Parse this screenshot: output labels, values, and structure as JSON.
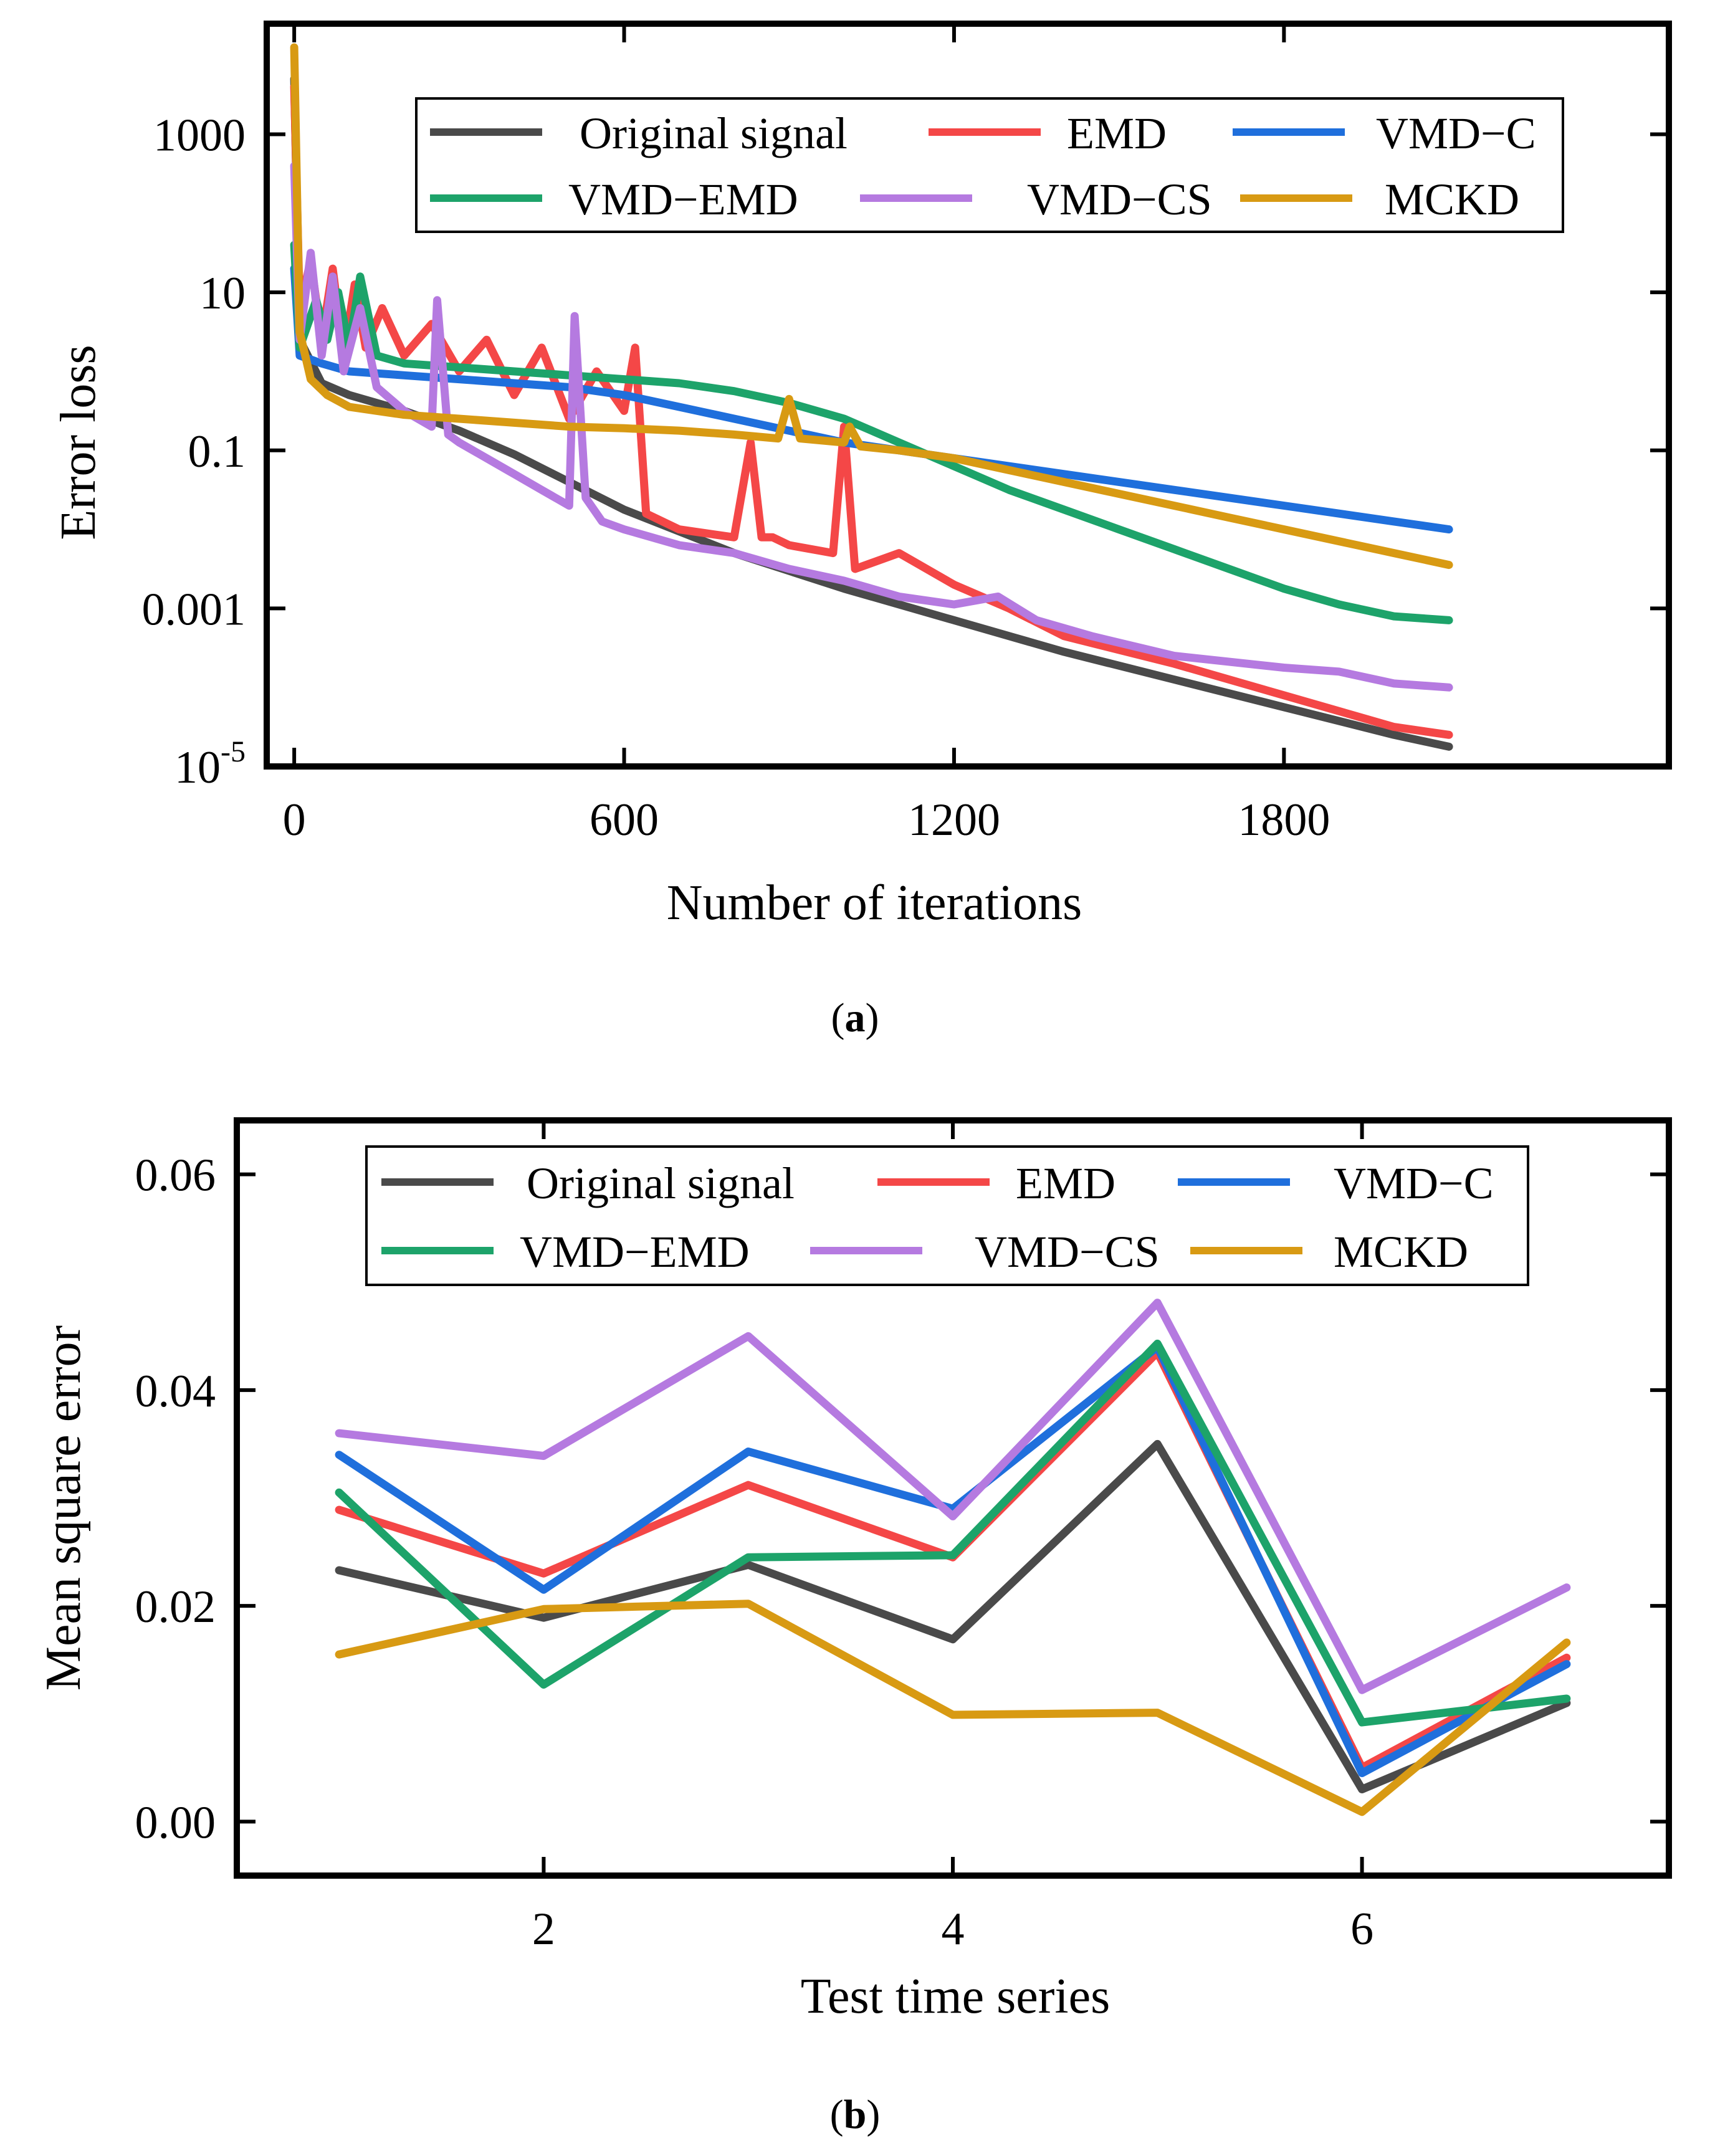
{
  "chart_data": [
    {
      "type": "line",
      "caption": {
        "open": "(",
        "letter": "a",
        "close": ")"
      },
      "xlabel": "Number of iterations",
      "ylabel": "Error loss",
      "yscale": "log",
      "xlim": [
        -50,
        2500
      ],
      "ylim_log10": [
        -5,
        4.4
      ],
      "x_ticks": [
        0,
        600,
        1200,
        1800
      ],
      "x_tick_labels": [
        "0",
        "600",
        "1200",
        "1800"
      ],
      "y_ticks_log10": [
        -5,
        -3,
        -1,
        1,
        3
      ],
      "y_tick_labels": [
        {
          "base": "10",
          "sup": "-5"
        },
        {
          "text": "0.001"
        },
        {
          "text": "0.1"
        },
        {
          "text": "10"
        },
        {
          "text": "1000"
        }
      ],
      "legend": {
        "location": "top-right",
        "columns": 3
      },
      "series": [
        {
          "name": "Original signal",
          "color": "#4a4a4a",
          "x": [
            0,
            10,
            50,
            100,
            200,
            300,
            400,
            500,
            600,
            800,
            1000,
            1200,
            1400,
            1600,
            1800,
            2000,
            2100
          ],
          "log10_y": [
            3.7,
            0.4,
            -0.15,
            -0.3,
            -0.5,
            -0.75,
            -1.05,
            -1.4,
            -1.75,
            -2.3,
            -2.75,
            -3.15,
            -3.55,
            -3.9,
            -4.25,
            -4.6,
            -4.75
          ]
        },
        {
          "name": "EMD",
          "color": "#f44747",
          "x": [
            0,
            10,
            30,
            50,
            70,
            90,
            110,
            130,
            160,
            200,
            250,
            300,
            350,
            400,
            450,
            500,
            550,
            600,
            620,
            640,
            700,
            800,
            830,
            850,
            870,
            900,
            980,
            1000,
            1020,
            1100,
            1200,
            1300,
            1400,
            1600,
            1800,
            2000,
            2100
          ],
          "log10_y": [
            3.6,
            0.8,
            1.4,
            0.4,
            1.3,
            0.2,
            1.1,
            0.3,
            0.8,
            0.2,
            0.6,
            0.0,
            0.4,
            -0.3,
            0.3,
            -0.6,
            0.0,
            -0.5,
            0.3,
            -1.8,
            -2.0,
            -2.1,
            -0.9,
            -2.1,
            -2.1,
            -2.2,
            -2.3,
            -0.7,
            -2.5,
            -2.3,
            -2.7,
            -3.0,
            -3.35,
            -3.7,
            -4.1,
            -4.5,
            -4.6
          ]
        },
        {
          "name": "VMD−C",
          "color": "#1f6fdc",
          "x": [
            0,
            10,
            50,
            100,
            200,
            300,
            400,
            500,
            600,
            700,
            800,
            900,
            1000,
            1100,
            1200,
            1400,
            1600,
            1800,
            2000,
            2100
          ],
          "log10_y": [
            1.3,
            0.2,
            0.1,
            0.0,
            -0.05,
            -0.1,
            -0.15,
            -0.2,
            -0.3,
            -0.45,
            -0.6,
            -0.75,
            -0.9,
            -1.0,
            -1.1,
            -1.3,
            -1.5,
            -1.7,
            -1.9,
            -2.0
          ]
        },
        {
          "name": "VMD−EMD",
          "color": "#1da36a",
          "x": [
            0,
            10,
            40,
            60,
            80,
            100,
            120,
            150,
            200,
            300,
            400,
            500,
            600,
            700,
            800,
            900,
            1000,
            1100,
            1200,
            1300,
            1400,
            1500,
            1600,
            1700,
            1800,
            1900,
            2000,
            2100
          ],
          "log10_y": [
            1.6,
            0.3,
            0.9,
            0.4,
            1.0,
            0.3,
            1.2,
            0.2,
            0.1,
            0.05,
            0.0,
            -0.05,
            -0.1,
            -0.15,
            -0.25,
            -0.4,
            -0.6,
            -0.9,
            -1.2,
            -1.5,
            -1.75,
            -2.0,
            -2.25,
            -2.5,
            -2.75,
            -2.95,
            -3.1,
            -3.15
          ]
        },
        {
          "name": "VMD−CS",
          "color": "#b57ae0",
          "x": [
            0,
            10,
            30,
            50,
            70,
            90,
            120,
            150,
            200,
            250,
            260,
            280,
            300,
            350,
            400,
            450,
            500,
            510,
            530,
            560,
            600,
            700,
            800,
            900,
            1000,
            1100,
            1200,
            1280,
            1350,
            1450,
            1600,
            1800,
            1900,
            2000,
            2100
          ],
          "log10_y": [
            2.6,
            0.4,
            1.5,
            0.2,
            1.2,
            0.0,
            0.8,
            -0.2,
            -0.5,
            -0.7,
            0.9,
            -0.8,
            -0.9,
            -1.1,
            -1.3,
            -1.5,
            -1.7,
            0.7,
            -1.6,
            -1.9,
            -2.0,
            -2.2,
            -2.3,
            -2.5,
            -2.65,
            -2.85,
            -2.95,
            -2.85,
            -3.15,
            -3.35,
            -3.6,
            -3.75,
            -3.8,
            -3.95,
            -4.0
          ]
        },
        {
          "name": "MCKD",
          "color": "#d89a13",
          "x": [
            0,
            10,
            30,
            60,
            100,
            200,
            300,
            400,
            500,
            600,
            700,
            800,
            880,
            900,
            920,
            1000,
            1010,
            1030,
            1100,
            1200,
            1300,
            1400,
            1500,
            1600,
            1700,
            1800,
            1900,
            2000,
            2100
          ],
          "log10_y": [
            4.1,
            0.5,
            -0.1,
            -0.3,
            -0.45,
            -0.55,
            -0.6,
            -0.65,
            -0.7,
            -0.72,
            -0.75,
            -0.8,
            -0.85,
            -0.35,
            -0.85,
            -0.9,
            -0.7,
            -0.95,
            -1.0,
            -1.1,
            -1.25,
            -1.4,
            -1.55,
            -1.7,
            -1.85,
            -2.0,
            -2.15,
            -2.3,
            -2.45
          ]
        }
      ]
    },
    {
      "type": "line",
      "caption": {
        "open": "(",
        "letter": "b",
        "close": ")"
      },
      "xlabel": "Test time series",
      "ylabel": "Mean square error",
      "xlim": [
        0.5,
        7.5
      ],
      "ylim": [
        -0.005,
        0.065
      ],
      "x_ticks": [
        2,
        4,
        6
      ],
      "x_tick_labels": [
        "2",
        "4",
        "6"
      ],
      "y_ticks": [
        0.0,
        0.02,
        0.04,
        0.06
      ],
      "y_tick_labels": [
        "0.00",
        "0.02",
        "0.04",
        "0.06"
      ],
      "x": [
        1,
        2,
        3,
        4,
        5,
        6,
        7
      ],
      "legend": {
        "location": "top",
        "columns": 3
      },
      "series": [
        {
          "name": "Original signal",
          "color": "#4a4a4a",
          "values": [
            0.0233,
            0.0189,
            0.0238,
            0.0169,
            0.035,
            0.003,
            0.011
          ]
        },
        {
          "name": "EMD",
          "color": "#f44747",
          "values": [
            0.0289,
            0.023,
            0.0312,
            0.0245,
            0.0435,
            0.005,
            0.0152
          ]
        },
        {
          "name": "VMD−C",
          "color": "#1f6fdc",
          "values": [
            0.034,
            0.0215,
            0.0343,
            0.029,
            0.044,
            0.0045,
            0.0146
          ]
        },
        {
          "name": "VMD−EMD",
          "color": "#1da36a",
          "values": [
            0.0305,
            0.0127,
            0.0245,
            0.0247,
            0.0443,
            0.0092,
            0.0114
          ]
        },
        {
          "name": "VMD−CS",
          "color": "#b57ae0",
          "values": [
            0.036,
            0.0339,
            0.045,
            0.0283,
            0.0481,
            0.0122,
            0.0217
          ]
        },
        {
          "name": "MCKD",
          "color": "#d89a13",
          "values": [
            0.0155,
            0.0197,
            0.0202,
            0.0099,
            0.0101,
            0.0009,
            0.0166
          ]
        }
      ]
    }
  ]
}
